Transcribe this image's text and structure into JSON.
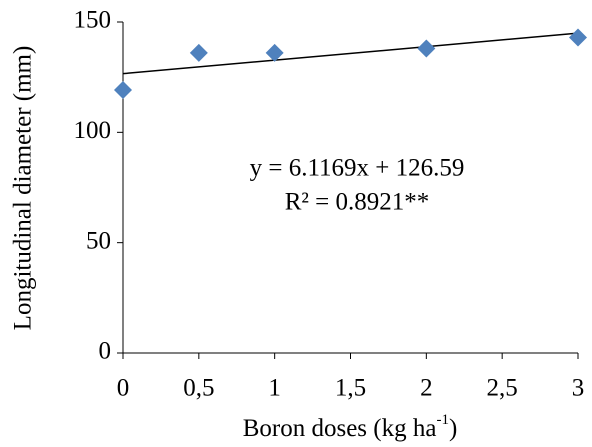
{
  "chart_data": {
    "type": "scatter",
    "x_label": {
      "text": "Boron doses (kg ha",
      "sup": "-1",
      "end": ")"
    },
    "y_label": "Longitudinal diameter (mm)",
    "annotations": [
      "y = 6.1169x + 126.59",
      "R² = 0.8921**"
    ],
    "series": [
      {
        "name": null,
        "color": "#4f81bd",
        "x": [
          0,
          0.5,
          1,
          2,
          3
        ],
        "values": [
          119.2,
          136,
          136,
          138,
          143
        ]
      }
    ],
    "trendline": {
      "slope": 6.1169,
      "intercept": 126.59,
      "color": "#000000"
    },
    "xlim": [
      0,
      3
    ],
    "xticks": [
      0,
      {
        "value": 0.5,
        "label": "0,5"
      },
      1,
      {
        "value": 1.5,
        "label": "1,5"
      },
      2,
      {
        "value": 2.5,
        "label": "2,5"
      },
      3
    ],
    "ylim": [
      0,
      150
    ],
    "yticks": [
      0,
      50,
      100,
      150
    ],
    "grid": false
  }
}
